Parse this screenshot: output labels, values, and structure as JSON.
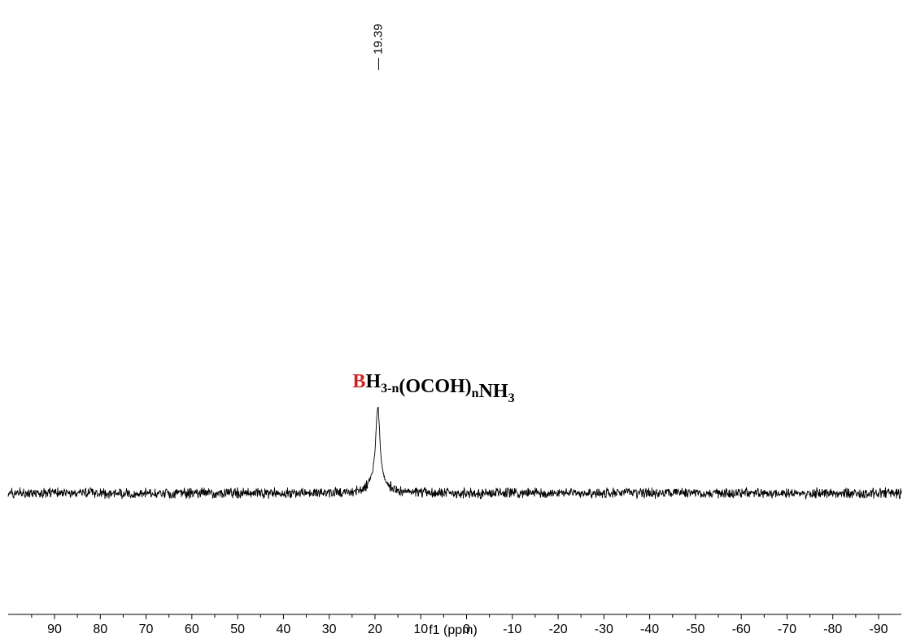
{
  "chart_data": {
    "type": "line",
    "title": "",
    "xlabel": "f1 (ppm)",
    "ylabel": "",
    "xlim": [
      99,
      -99
    ],
    "x_reversed": true,
    "grid": false,
    "x_ticks": [
      90,
      80,
      70,
      60,
      50,
      40,
      30,
      20,
      10,
      0,
      -10,
      -20,
      -30,
      -40,
      -50,
      -60,
      -70,
      -80,
      -90
    ],
    "x_tick_labels": [
      "90",
      "80",
      "70",
      "60",
      "50",
      "40",
      "30",
      "20",
      "10",
      "0",
      "-10",
      "-20",
      "-30",
      "-40",
      "-50",
      "-60",
      "-70",
      "-80",
      "-90"
    ],
    "peaks": [
      {
        "position": 19.39,
        "label": "19.39",
        "relative_height": 1.0,
        "width_ppm": 0.8
      }
    ],
    "baseline_noise": "present",
    "annotation": {
      "element": "B",
      "rest_parts": [
        {
          "text": "H",
          "style": "normal"
        },
        {
          "text": "3-n",
          "style": "sub"
        },
        {
          "text": "(OCOH)",
          "style": "normal"
        },
        {
          "text": "n",
          "style": "sub"
        },
        {
          "text": "NH",
          "style": "normal"
        },
        {
          "text": "3",
          "style": "sub"
        }
      ],
      "element_color": "#d42020"
    },
    "line_color": "#000000"
  }
}
